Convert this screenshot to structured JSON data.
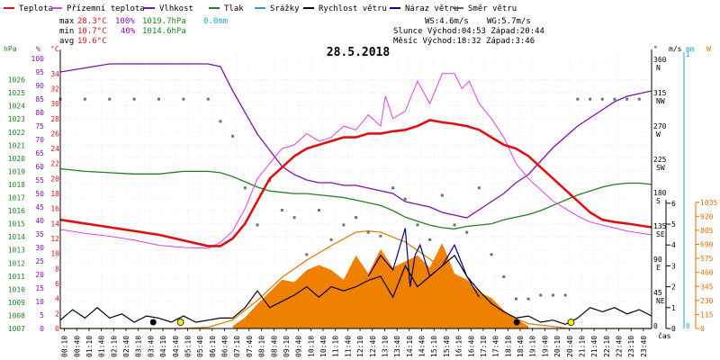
{
  "chart_data": {
    "type": "line",
    "title": "28.5.2018",
    "xlabel": "čas",
    "legend": [
      {
        "name": "Teplota",
        "color": "#e01010"
      },
      {
        "name": "Přízemní teplota",
        "color": "#e040e0"
      },
      {
        "name": "Vlhkost",
        "color": "#8010b0"
      },
      {
        "name": "Tlak",
        "color": "#208020"
      },
      {
        "name": "Srážky",
        "color": "#20a0d0"
      },
      {
        "name": "Rychlost větru",
        "color": "#000000"
      },
      {
        "name": "Náraz větru",
        "color": "#000090"
      },
      {
        "name": "Směr větru",
        "color": "#606060"
      }
    ],
    "stats": {
      "max": {
        "label": "max",
        "temp": "28.3°C",
        "hum": "100%",
        "press": "1019.7hPa",
        "rain": "0.0mm"
      },
      "min": {
        "label": "min",
        "temp": "10.7°C",
        "hum": "40%",
        "press": "1014.6hPa"
      },
      "avg": {
        "label": "avg",
        "temp": "19.6°C"
      }
    },
    "info": {
      "ws": "WS:4.6m/s",
      "wg": "WG:5.7m/s",
      "sun": "Slunce  Východ:04:53  Západ:20:44",
      "moon": "Měsíc  Východ:18:32  Západ:3:46"
    },
    "axes": {
      "hpa": {
        "unit": "hPa",
        "range": [
          1007,
          1027
        ],
        "ticks": [
          "1026",
          "1025",
          "1024",
          "1023",
          "1022",
          "1021",
          "1020",
          "1019",
          "1018",
          "1017",
          "1016",
          "1015",
          "1014",
          "1013",
          "1012",
          "1011",
          "1010",
          "1009",
          "1008",
          "1007"
        ]
      },
      "pct": {
        "unit": "%",
        "range": [
          0,
          100
        ],
        "ticks": [
          "100",
          "95",
          "90",
          "85",
          "80",
          "75",
          "70",
          "65",
          "60",
          "55",
          "50",
          "45",
          "40",
          "35",
          "30",
          "25",
          "20",
          "15",
          "10",
          "5",
          "0"
        ]
      },
      "temp": {
        "unit": "°C",
        "range": [
          0,
          36
        ],
        "ticks": [
          "34",
          "32",
          "30",
          "28",
          "26",
          "24",
          "22",
          "20",
          "18",
          "16",
          "14",
          "12",
          "10",
          "8",
          "6",
          "4",
          "2",
          "0"
        ]
      },
      "dir": {
        "unit": "°",
        "ticks": [
          "360 N",
          "315 NW",
          "270 W",
          "225 SW",
          "180 S",
          "135 SE",
          "90 E",
          "45 NE",
          "0"
        ]
      },
      "ms": {
        "unit": "m/s",
        "range": [
          0,
          6
        ],
        "ticks": [
          "6",
          "5",
          "4",
          "3",
          "2",
          "1",
          "0"
        ]
      },
      "mm": {
        "unit": "mm",
        "ticks": [
          "1",
          "0"
        ]
      },
      "w": {
        "unit": "W",
        "range": [
          0,
          1035
        ],
        "ticks": [
          "1035",
          "920",
          "805",
          "690",
          "575",
          "460",
          "345",
          "230",
          "115",
          "0"
        ]
      }
    },
    "x_ticks": [
      "00:10",
      "00:40",
      "01:10",
      "01:40",
      "02:10",
      "02:40",
      "03:10",
      "03:40",
      "04:10",
      "04:40",
      "05:10",
      "05:40",
      "06:10",
      "06:40",
      "07:10",
      "07:40",
      "08:10",
      "08:40",
      "09:10",
      "09:40",
      "10:10",
      "10:40",
      "11:10",
      "11:40",
      "12:10",
      "12:40",
      "13:10",
      "13:40",
      "14:10",
      "14:40",
      "15:10",
      "15:40",
      "16:10",
      "16:40",
      "17:10",
      "17:40",
      "18:10",
      "18:40",
      "19:10",
      "19:40",
      "20:10",
      "20:40",
      "21:10",
      "21:40",
      "22:10",
      "22:40",
      "23:10",
      "23:40"
    ],
    "series": {
      "temperature": {
        "x": [
          0,
          2,
          4,
          6,
          6.5,
          7,
          7.5,
          8,
          8.5,
          9,
          9.5,
          10,
          10.5,
          11,
          11.5,
          12,
          12.5,
          13,
          13.5,
          14,
          14.5,
          15,
          15.5,
          16,
          16.5,
          17,
          17.5,
          18,
          18.5,
          19,
          19.5,
          20,
          20.5,
          21,
          21.5,
          22,
          22.5,
          23,
          24
        ],
        "y": [
          14.5,
          13.5,
          12.5,
          11,
          11,
          12,
          14,
          17,
          20,
          21.5,
          23,
          24,
          24.5,
          25,
          25.5,
          25.5,
          26,
          26,
          26.3,
          26.5,
          27,
          27.8,
          27.5,
          27.3,
          27,
          26.5,
          25.5,
          24.5,
          24,
          23,
          21.5,
          20,
          18.5,
          17,
          15.5,
          14.5,
          14.2,
          14,
          13.5
        ]
      },
      "ground_temp": {
        "x": [
          0,
          1,
          2,
          3,
          4,
          5,
          6,
          6.5,
          7,
          7.5,
          8,
          8.5,
          9,
          9.5,
          10,
          10.5,
          11,
          11.5,
          12,
          12.5,
          13,
          13.2,
          13.5,
          14,
          14.5,
          15,
          15.5,
          16,
          16.3,
          16.6,
          17,
          17.5,
          18,
          18.5,
          19,
          19.5,
          20,
          20.5,
          21,
          21.5,
          22,
          23,
          24
        ],
        "y": [
          13.2,
          12.7,
          12.3,
          11.8,
          11.1,
          10.8,
          10.7,
          11.5,
          13,
          16,
          20,
          22,
          24,
          24.5,
          26,
          25,
          25.5,
          27,
          26.5,
          28.5,
          27,
          31,
          28,
          29,
          33,
          30,
          34,
          34,
          32,
          33,
          30,
          28,
          25.5,
          22,
          20,
          18.5,
          17,
          16,
          15,
          14.2,
          13.8,
          13,
          12.5
        ]
      },
      "humidity": {
        "x": [
          0,
          2,
          4,
          6,
          6.5,
          7,
          7.5,
          8,
          8.5,
          9,
          9.5,
          10,
          10.5,
          11,
          11.5,
          12,
          12.5,
          13,
          13.5,
          14,
          14.5,
          15,
          15.5,
          16,
          16.5,
          17,
          17.5,
          18,
          18.5,
          19,
          19.5,
          20,
          20.5,
          21,
          21.5,
          22,
          22.5,
          23,
          23.5,
          24
        ],
        "y": [
          95,
          98,
          98,
          98,
          97,
          88,
          80,
          72,
          66,
          60,
          57,
          55,
          54,
          54,
          53,
          53,
          52,
          51,
          50,
          47,
          46,
          45,
          43,
          42,
          41,
          44,
          47,
          50,
          54,
          57,
          62,
          67,
          71,
          75,
          78,
          81,
          84,
          86,
          87,
          88
        ]
      },
      "pressure": {
        "x": [
          0,
          1,
          2,
          3,
          4,
          5,
          6,
          6.5,
          7,
          7.5,
          8,
          8.5,
          9,
          9.5,
          10,
          10.5,
          11,
          11.5,
          12,
          12.5,
          13,
          13.5,
          14,
          14.5,
          15,
          15.5,
          16,
          16.5,
          17,
          17.5,
          18,
          18.5,
          19,
          19.5,
          20,
          20.5,
          21,
          21.5,
          22,
          22.5,
          23,
          23.5,
          24
        ],
        "y": [
          1019.2,
          1019.0,
          1018.9,
          1018.8,
          1018.8,
          1019.0,
          1019.0,
          1018.9,
          1018.6,
          1018.2,
          1017.8,
          1017.5,
          1017.4,
          1017.3,
          1017.3,
          1017.2,
          1017.1,
          1017.0,
          1016.8,
          1016.6,
          1016.4,
          1016.0,
          1015.5,
          1015.2,
          1014.9,
          1014.7,
          1014.6,
          1014.8,
          1014.9,
          1015.0,
          1015.3,
          1015.5,
          1015.7,
          1016.0,
          1016.4,
          1016.8,
          1017.2,
          1017.5,
          1017.8,
          1018.0,
          1018.1,
          1018.1,
          1018.0
        ]
      },
      "wind_speed": {
        "x": [
          0,
          0.5,
          1,
          1.5,
          2,
          2.5,
          3,
          3.5,
          4,
          4.5,
          5,
          5.5,
          6,
          6.5,
          7,
          7.5,
          8,
          8.5,
          9,
          9.5,
          10,
          10.5,
          11,
          11.5,
          12,
          12.5,
          13,
          13.5,
          14,
          14.5,
          15,
          15.5,
          16,
          16.5,
          17,
          17.5,
          18,
          18.5,
          19,
          19.5,
          20,
          20.5,
          21,
          21.5,
          22,
          22.5,
          23,
          23.5,
          24
        ],
        "y": [
          0.4,
          0.9,
          0.5,
          1.0,
          0.5,
          0.7,
          0.3,
          0.6,
          0.5,
          0.3,
          0.6,
          0.3,
          0.4,
          0.5,
          0.5,
          1.0,
          1.8,
          1.0,
          1.3,
          1.6,
          2.0,
          1.5,
          2.0,
          1.8,
          2.0,
          2.3,
          2.5,
          1.5,
          3.0,
          2.0,
          2.5,
          3.0,
          3.5,
          2.5,
          1.8,
          1.2,
          0.8,
          0.5,
          0.6,
          0.3,
          0.4,
          0.2,
          0.5,
          1.0,
          0.8,
          1.0,
          0.7,
          0.9,
          0.6
        ]
      },
      "wind_gust": {
        "x": [
          12.5,
          13,
          13.5,
          14,
          14.2,
          14.4,
          14.6,
          15,
          15.5,
          16,
          16.5,
          17
        ],
        "y": [
          2.5,
          3.5,
          2.8,
          4.8,
          2.0,
          3.5,
          4.0,
          2.5,
          3.0,
          4.0,
          2.5,
          1.5
        ]
      },
      "wind_direction": {
        "x": [
          0,
          1,
          2,
          3,
          4,
          5,
          6,
          6.5,
          7,
          7.5,
          8,
          8.5,
          9,
          9.5,
          10,
          10.5,
          11,
          11.5,
          12,
          12.5,
          13,
          13.5,
          14,
          14.5,
          15,
          15.5,
          16,
          16.5,
          17,
          17.5,
          18,
          18.5,
          19,
          19.5,
          20,
          20.5,
          21,
          21.5,
          22,
          22.5,
          23,
          23.5
        ],
        "y": [
          310,
          310,
          310,
          310,
          310,
          310,
          310,
          280,
          260,
          190,
          140,
          200,
          160,
          150,
          100,
          160,
          120,
          140,
          150,
          130,
          125,
          190,
          175,
          140,
          120,
          180,
          140,
          130,
          190,
          100,
          70,
          40,
          40,
          45,
          45,
          45,
          310,
          310,
          310,
          310,
          310,
          310
        ]
      },
      "solar": {
        "x": [
          0,
          4.8,
          6,
          7,
          8,
          9,
          10,
          11,
          12,
          12.5,
          13,
          14,
          15,
          16,
          17,
          18,
          19,
          20.7,
          24
        ],
        "y": [
          0,
          0,
          10,
          70,
          230,
          420,
          560,
          680,
          790,
          800,
          790,
          710,
          570,
          400,
          260,
          120,
          40,
          0,
          0
        ]
      },
      "solar_measured": {
        "x": [
          7,
          7.5,
          8,
          8.5,
          9,
          9.5,
          10,
          10.5,
          11,
          11.5,
          12,
          12.5,
          13,
          13.5,
          14,
          14.5,
          15,
          15.5,
          16,
          16.5,
          17,
          17.5,
          18,
          18.5,
          19
        ],
        "y": [
          20,
          90,
          200,
          300,
          400,
          380,
          480,
          520,
          480,
          400,
          600,
          450,
          650,
          500,
          550,
          600,
          500,
          700,
          450,
          400,
          300,
          250,
          150,
          80,
          20
        ]
      }
    }
  }
}
